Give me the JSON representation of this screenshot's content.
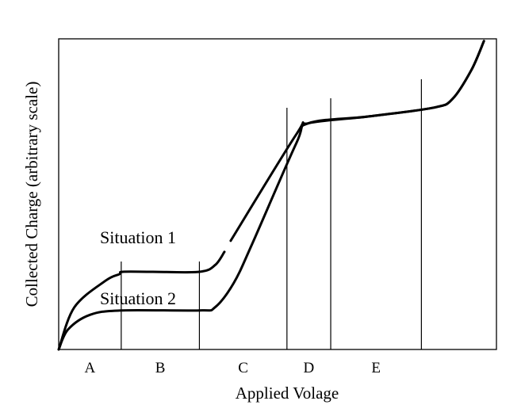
{
  "chart_data": {
    "type": "line",
    "xlabel": "Applied Volage",
    "ylabel": "Collected Charge (arbitrary scale)",
    "x_scale": "qualitative regions",
    "y_scale": "arbitrary",
    "grid": false,
    "legend": "none",
    "regions": [
      "A",
      "B",
      "C",
      "D",
      "E"
    ],
    "series": [
      {
        "name": "Situation 1",
        "color": "#000000",
        "points": [
          [
            0.0,
            0.0
          ],
          [
            0.5,
            0.95
          ],
          [
            1.5,
            1.55
          ],
          [
            1.95,
            1.7
          ],
          [
            2.05,
            1.75
          ],
          [
            3.0,
            1.75
          ],
          [
            4.5,
            1.75
          ],
          [
            5.0,
            1.9
          ],
          [
            5.3,
            2.2
          ],
          [
            5.5,
            2.45
          ],
          [
            7.6,
            4.85
          ],
          [
            8.0,
            5.1
          ],
          [
            9.9,
            5.25
          ],
          [
            12.0,
            5.45
          ],
          [
            12.6,
            5.65
          ],
          [
            13.2,
            6.3
          ],
          [
            13.6,
            6.95
          ]
        ],
        "gaps": [
          [
            5.3,
            5.5
          ]
        ]
      },
      {
        "name": "Situation 2",
        "color": "#000000",
        "points": [
          [
            0.0,
            0.0
          ],
          [
            0.3,
            0.45
          ],
          [
            1.0,
            0.78
          ],
          [
            2.0,
            0.88
          ],
          [
            4.5,
            0.88
          ],
          [
            5.0,
            0.95
          ],
          [
            5.6,
            1.5
          ],
          [
            6.2,
            2.4
          ],
          [
            7.6,
            4.65
          ],
          [
            8.0,
            5.1
          ],
          [
            9.9,
            5.25
          ],
          [
            12.0,
            5.45
          ],
          [
            12.6,
            5.65
          ],
          [
            13.2,
            6.3
          ],
          [
            13.6,
            6.95
          ]
        ]
      }
    ],
    "region_boundaries": [
      2.0,
      4.5,
      7.3,
      8.7,
      11.6
    ],
    "xlim": [
      0,
      14
    ],
    "ylim": [
      0,
      7
    ]
  }
}
